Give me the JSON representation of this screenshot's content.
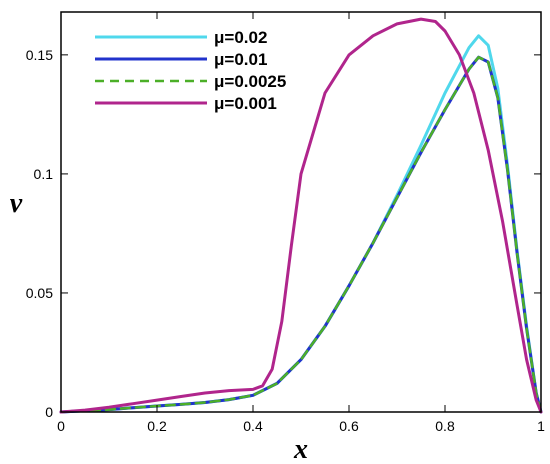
{
  "chart_data": {
    "type": "line",
    "title": "",
    "xlabel": "x",
    "ylabel": "v",
    "xlim": [
      0,
      1
    ],
    "ylim": [
      0,
      0.168
    ],
    "grid": false,
    "legend_position": "top-left",
    "x_ticks": [
      0,
      0.2,
      0.4,
      0.6,
      0.8,
      1
    ],
    "x_tick_labels": [
      "0",
      "0.2",
      "0.4",
      "0.6",
      "0.8",
      "1"
    ],
    "y_ticks": [
      0,
      0.05,
      0.1,
      0.15
    ],
    "y_tick_labels": [
      "0",
      "0.05",
      "0.1",
      "0.15"
    ],
    "series": [
      {
        "name": "μ=0.02",
        "color": "#4fd8ec",
        "dash": "solid",
        "x": [
          0,
          0.05,
          0.1,
          0.15,
          0.2,
          0.25,
          0.3,
          0.35,
          0.4,
          0.45,
          0.5,
          0.55,
          0.6,
          0.65,
          0.7,
          0.75,
          0.8,
          0.85,
          0.87,
          0.89,
          0.91,
          0.93,
          0.95,
          0.97,
          0.99,
          1.0
        ],
        "y": [
          0,
          0.0005,
          0.001,
          0.0018,
          0.0025,
          0.0032,
          0.004,
          0.0052,
          0.007,
          0.012,
          0.022,
          0.036,
          0.053,
          0.071,
          0.091,
          0.112,
          0.134,
          0.153,
          0.158,
          0.154,
          0.136,
          0.104,
          0.068,
          0.036,
          0.008,
          0
        ]
      },
      {
        "name": "μ=0.01",
        "color": "#2233cc",
        "dash": "solid",
        "x": [
          0,
          0.05,
          0.1,
          0.15,
          0.2,
          0.25,
          0.3,
          0.35,
          0.4,
          0.45,
          0.5,
          0.55,
          0.6,
          0.65,
          0.7,
          0.75,
          0.8,
          0.85,
          0.87,
          0.89,
          0.91,
          0.93,
          0.95,
          0.97,
          0.99,
          1.0
        ],
        "y": [
          0,
          0.0005,
          0.001,
          0.0018,
          0.0025,
          0.0032,
          0.004,
          0.0052,
          0.007,
          0.012,
          0.022,
          0.036,
          0.053,
          0.071,
          0.09,
          0.109,
          0.127,
          0.144,
          0.149,
          0.147,
          0.132,
          0.102,
          0.067,
          0.035,
          0.008,
          0
        ]
      },
      {
        "name": "μ=0.0025",
        "color": "#4caf28",
        "dash": "dashed",
        "x": [
          0,
          0.05,
          0.1,
          0.15,
          0.2,
          0.25,
          0.3,
          0.35,
          0.4,
          0.45,
          0.5,
          0.55,
          0.6,
          0.65,
          0.7,
          0.75,
          0.8,
          0.85,
          0.87,
          0.89,
          0.91,
          0.93,
          0.95,
          0.97,
          0.99,
          1.0
        ],
        "y": [
          0,
          0.0005,
          0.001,
          0.0018,
          0.0025,
          0.0032,
          0.004,
          0.0052,
          0.007,
          0.012,
          0.022,
          0.036,
          0.053,
          0.071,
          0.09,
          0.109,
          0.127,
          0.144,
          0.149,
          0.147,
          0.132,
          0.102,
          0.067,
          0.035,
          0.008,
          0
        ]
      },
      {
        "name": "μ=0.001",
        "color": "#b0258c",
        "dash": "solid",
        "x": [
          0,
          0.05,
          0.1,
          0.15,
          0.2,
          0.25,
          0.3,
          0.35,
          0.4,
          0.42,
          0.44,
          0.46,
          0.48,
          0.5,
          0.55,
          0.6,
          0.65,
          0.7,
          0.75,
          0.78,
          0.8,
          0.83,
          0.86,
          0.89,
          0.92,
          0.95,
          0.97,
          0.99,
          1.0
        ],
        "y": [
          0,
          0.0008,
          0.002,
          0.0035,
          0.005,
          0.0065,
          0.008,
          0.009,
          0.0095,
          0.011,
          0.018,
          0.038,
          0.07,
          0.1,
          0.134,
          0.15,
          0.158,
          0.163,
          0.165,
          0.164,
          0.16,
          0.15,
          0.134,
          0.11,
          0.08,
          0.045,
          0.022,
          0.005,
          0
        ]
      }
    ]
  }
}
